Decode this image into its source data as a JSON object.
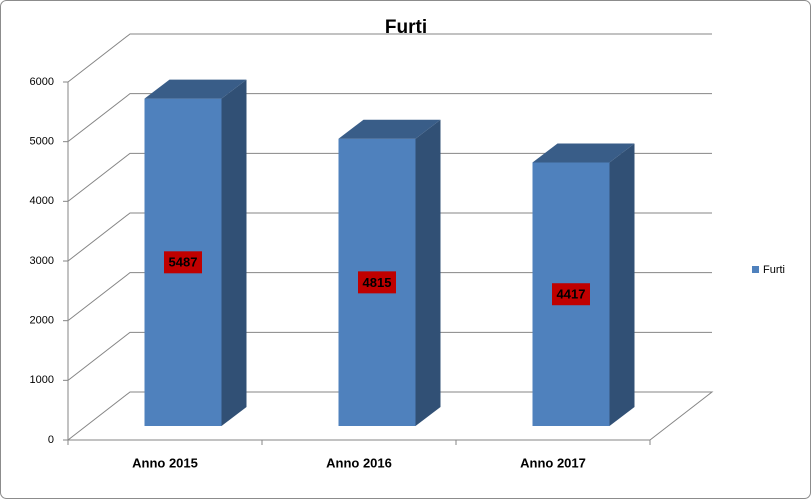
{
  "chart_data": {
    "type": "bar3d",
    "title": "Furti",
    "categories": [
      "Anno 2015",
      "Anno 2016",
      "Anno 2017"
    ],
    "series": [
      {
        "name": "Furti",
        "color": "#4f81bd",
        "values": [
          5487,
          4815,
          4417
        ]
      }
    ],
    "ylim": [
      0,
      6000
    ],
    "yticks": [
      0,
      1000,
      2000,
      3000,
      4000,
      5000,
      6000
    ],
    "grid": true,
    "legend": "right",
    "data_labels": true
  }
}
